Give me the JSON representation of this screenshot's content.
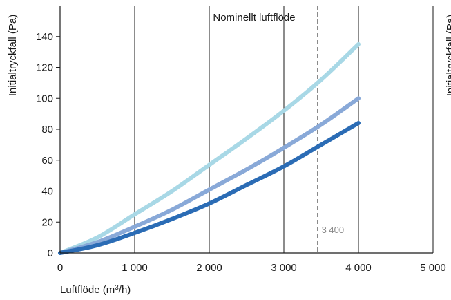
{
  "chart_data": {
    "type": "line",
    "xlabel_prefix": "Luftflöde (m",
    "xlabel_sup": "3",
    "xlabel_suffix": "/h)",
    "ylabel": "Initialtryckfall (Pa)",
    "ylabel_right_partial": "Initialtryckfall (Pa)",
    "xlim": [
      0,
      5000
    ],
    "ylim": [
      0,
      160
    ],
    "x_ticks": [
      {
        "value": 0,
        "label": "0"
      },
      {
        "value": 1000,
        "label": "1 000"
      },
      {
        "value": 2000,
        "label": "2 000"
      },
      {
        "value": 3000,
        "label": "3 000"
      },
      {
        "value": 4000,
        "label": "4 000"
      },
      {
        "value": 5000,
        "label": "5 000"
      }
    ],
    "y_ticks": [
      {
        "value": 0,
        "label": "0"
      },
      {
        "value": 20,
        "label": "20"
      },
      {
        "value": 40,
        "label": "40"
      },
      {
        "value": 60,
        "label": "60"
      },
      {
        "value": 80,
        "label": "80"
      },
      {
        "value": 100,
        "label": "100"
      },
      {
        "value": 120,
        "label": "120"
      },
      {
        "value": 140,
        "label": "140"
      }
    ],
    "grid": "vertical",
    "reference_line": {
      "x": 3450,
      "label": "Nominellt luftflöde",
      "value_label": "3 400",
      "color": "#8a8a8a"
    },
    "series": [
      {
        "color": "#a8d8e6",
        "x": [
          0,
          500,
          1000,
          1500,
          2000,
          2500,
          3000,
          3500,
          4000
        ],
        "y": [
          0,
          10,
          25,
          40,
          57,
          74,
          92,
          112,
          135
        ]
      },
      {
        "color": "#89a9d8",
        "x": [
          0,
          500,
          1000,
          1500,
          2000,
          2500,
          3000,
          3500,
          4000
        ],
        "y": [
          0,
          7,
          17,
          28,
          41,
          54,
          68,
          83,
          100
        ]
      },
      {
        "color": "#2b6cb5",
        "x": [
          0,
          500,
          1000,
          1500,
          2000,
          2500,
          3000,
          3500,
          4000
        ],
        "y": [
          0,
          5,
          13,
          22,
          32,
          44,
          56,
          70,
          84
        ]
      }
    ]
  }
}
